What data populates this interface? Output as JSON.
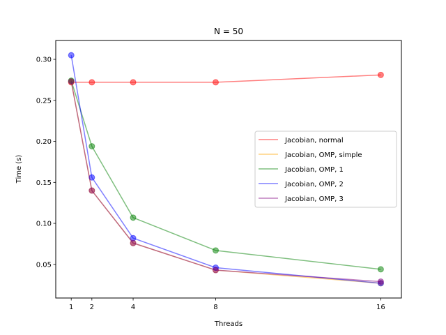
{
  "chart_data": {
    "type": "line",
    "title": "N = 50",
    "xlabel": "Threads",
    "ylabel": "Time (s)",
    "x": [
      1,
      2,
      4,
      8,
      16
    ],
    "xlim": [
      0.25,
      17.0
    ],
    "ylim": [
      0.009,
      0.323
    ],
    "xticks": [
      1,
      2,
      4,
      8,
      16
    ],
    "yticks": [
      0.05,
      0.1,
      0.15,
      0.2,
      0.25,
      0.3
    ],
    "ytick_labels": [
      "0.05",
      "0.10",
      "0.15",
      "0.20",
      "0.25",
      "0.30"
    ],
    "grid": false,
    "legend_position": "center-right",
    "series": [
      {
        "name": "Jacobian, normal",
        "color": "#ff0000",
        "values": [
          0.272,
          0.272,
          0.272,
          0.272,
          0.281
        ]
      },
      {
        "name": "Jacobian, OMP, simple",
        "color": "#ffa500",
        "values": [
          0.273,
          0.14,
          0.076,
          0.043,
          0.027
        ]
      },
      {
        "name": "Jacobian, OMP, 1",
        "color": "#008000",
        "values": [
          0.274,
          0.194,
          0.107,
          0.067,
          0.044
        ]
      },
      {
        "name": "Jacobian, OMP, 2",
        "color": "#0000ff",
        "values": [
          0.305,
          0.156,
          0.082,
          0.046,
          0.027
        ]
      },
      {
        "name": "Jacobian, OMP, 3",
        "color": "#800080",
        "values": [
          0.273,
          0.14,
          0.076,
          0.043,
          0.029
        ]
      }
    ]
  }
}
